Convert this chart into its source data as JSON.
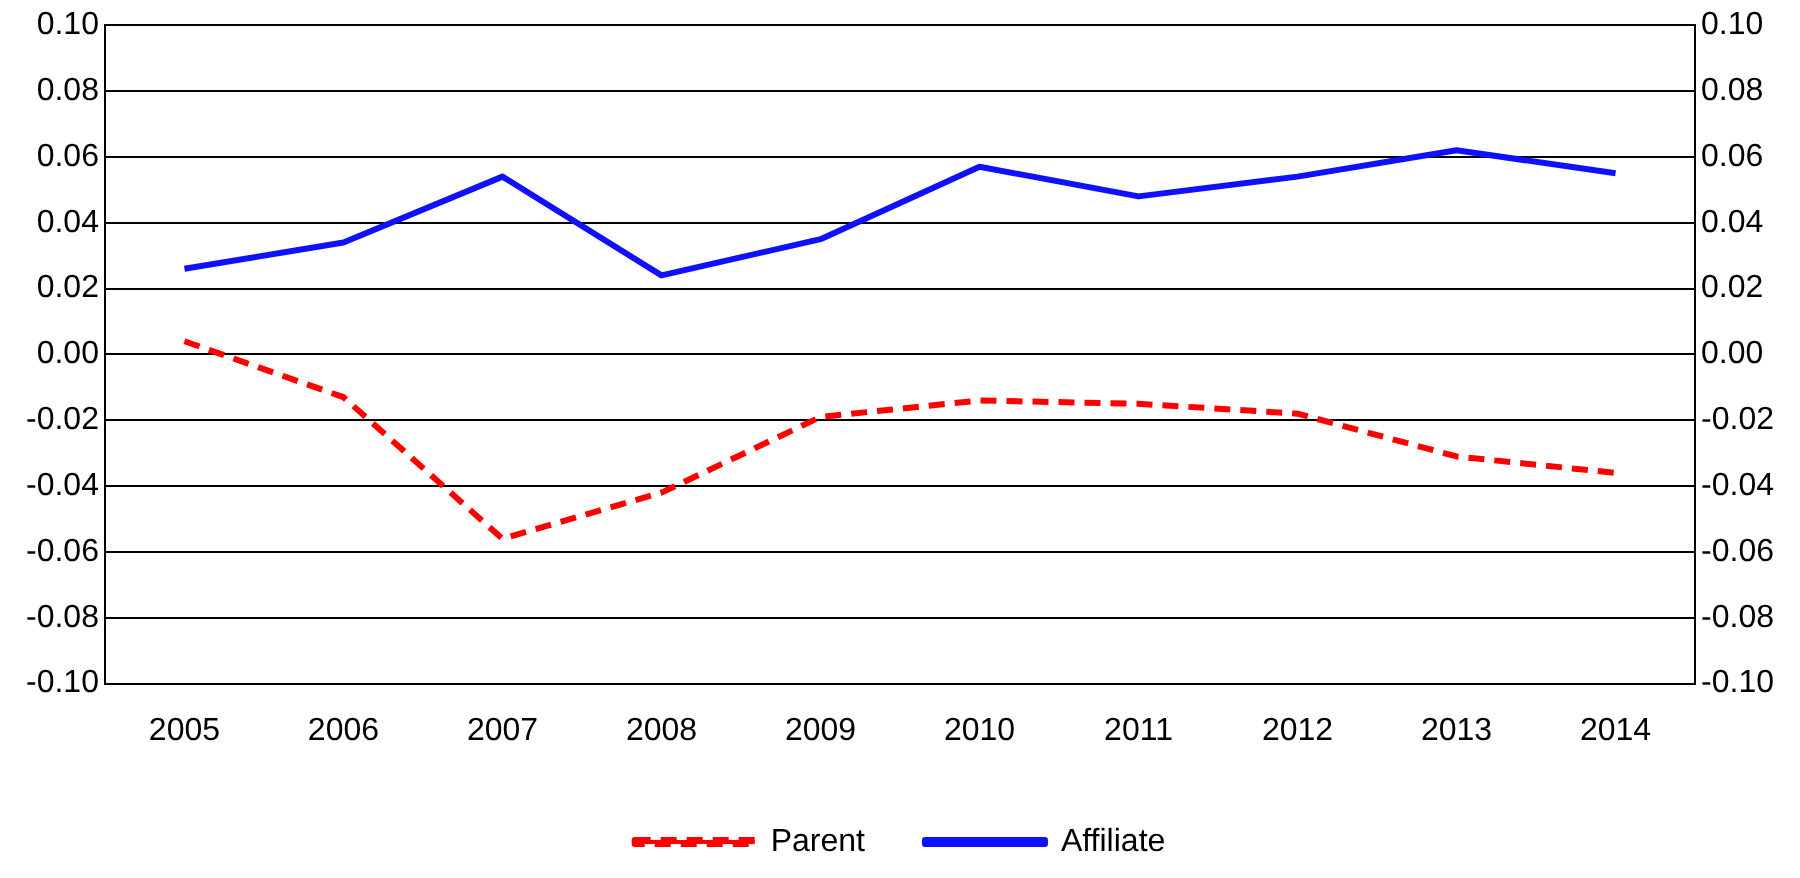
{
  "chart_data": {
    "type": "line",
    "categories": [
      "2005",
      "2006",
      "2007",
      "2008",
      "2009",
      "2010",
      "2011",
      "2012",
      "2013",
      "2014"
    ],
    "series": [
      {
        "name": "Parent",
        "color": "#ff0000",
        "line_style": "dashed",
        "values": [
          0.004,
          -0.013,
          -0.056,
          -0.042,
          -0.019,
          -0.014,
          -0.015,
          -0.018,
          -0.031,
          -0.036
        ]
      },
      {
        "name": "Affiliate",
        "color": "#1010ff",
        "line_style": "solid",
        "values": [
          0.026,
          0.034,
          0.054,
          0.024,
          0.035,
          0.057,
          0.048,
          0.054,
          0.062,
          0.055
        ]
      }
    ],
    "ylim": [
      -0.1,
      0.1
    ],
    "yticks": [
      {
        "value": -0.1,
        "label": "-0.10"
      },
      {
        "value": -0.08,
        "label": "-0.08"
      },
      {
        "value": -0.06,
        "label": "-0.06"
      },
      {
        "value": -0.04,
        "label": "-0.04"
      },
      {
        "value": -0.02,
        "label": "-0.02"
      },
      {
        "value": 0,
        "label": "0.00"
      },
      {
        "value": 0.02,
        "label": "0.02"
      },
      {
        "value": 0.04,
        "label": "0.04"
      },
      {
        "value": 0.06,
        "label": "0.06"
      },
      {
        "value": 0.08,
        "label": "0.08"
      },
      {
        "value": 0.1,
        "label": "0.10"
      }
    ],
    "y2lim": [
      -0.1,
      0.1
    ],
    "y2ticks": [
      {
        "value": -0.1,
        "label": "-0.10"
      },
      {
        "value": -0.08,
        "label": "-0.08"
      },
      {
        "value": -0.06,
        "label": "-0.06"
      },
      {
        "value": -0.04,
        "label": "-0.04"
      },
      {
        "value": -0.02,
        "label": "-0.02"
      },
      {
        "value": 0,
        "label": "0.00"
      },
      {
        "value": 0.02,
        "label": "0.02"
      },
      {
        "value": 0.04,
        "label": "0.04"
      },
      {
        "value": 0.06,
        "label": "0.06"
      },
      {
        "value": 0.08,
        "label": "0.08"
      },
      {
        "value": 0.1,
        "label": "0.10"
      }
    ],
    "grid": "y",
    "legend": "bottom",
    "marker": "none"
  }
}
